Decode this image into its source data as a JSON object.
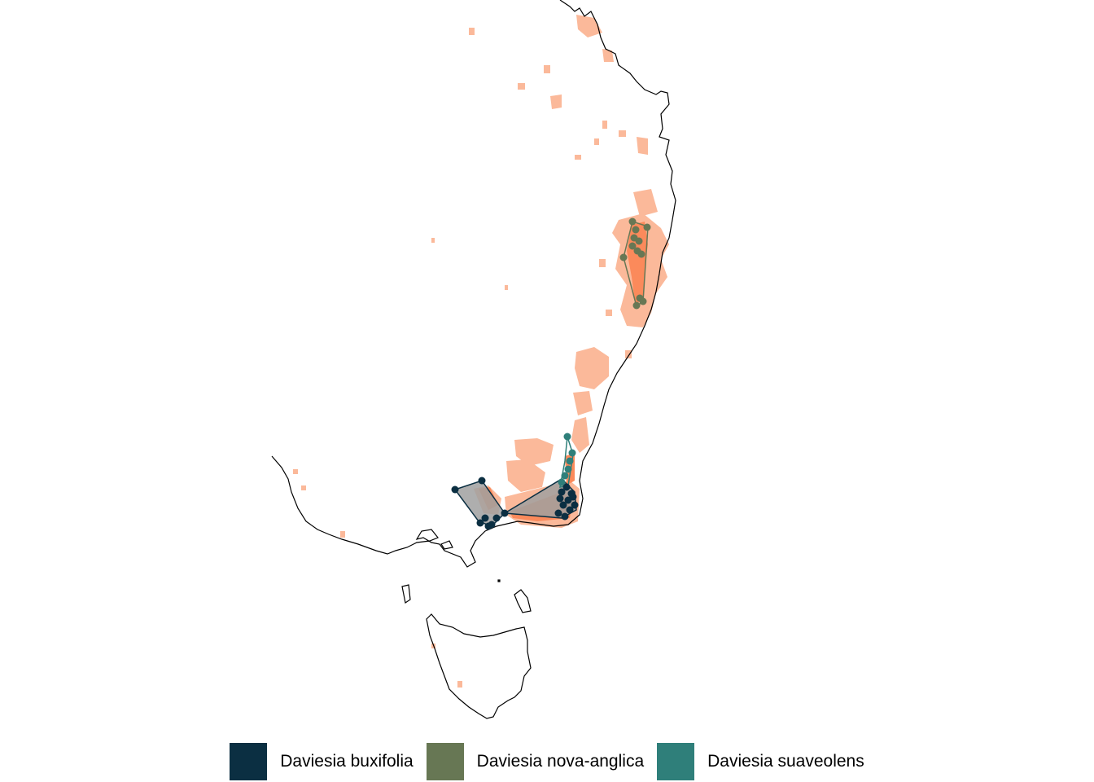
{
  "legend": {
    "items": [
      {
        "label": "Daviesia buxifolia",
        "color": "#0b2f42"
      },
      {
        "label": "Daviesia nova-anglica",
        "color": "#677754"
      },
      {
        "label": "Daviesia suaveolens",
        "color": "#2f7f7a"
      }
    ]
  },
  "colors": {
    "coastline": "#000000",
    "suitable_habitat_light": "#fbb99a",
    "suitable_habitat_dark": "#fb8a5b",
    "hull_fill": "#a0a0a0"
  }
}
